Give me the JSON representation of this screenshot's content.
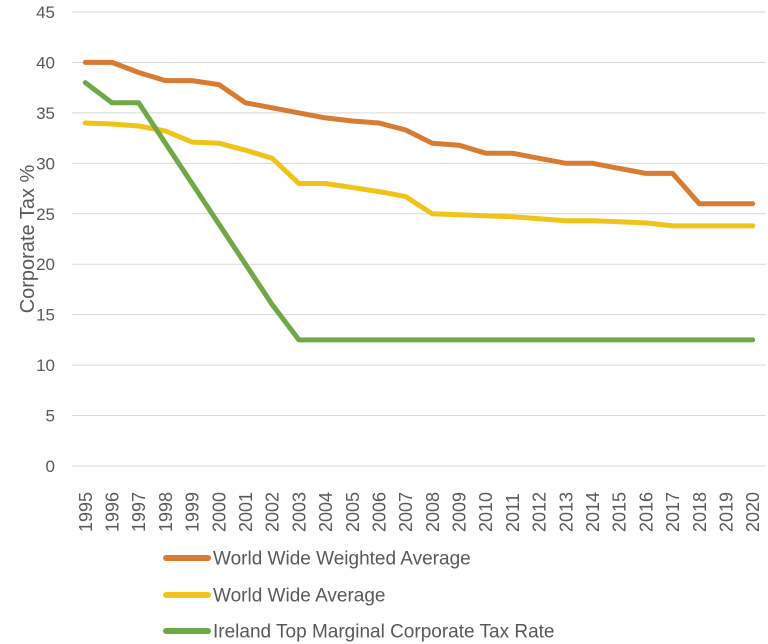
{
  "chart_data": {
    "type": "line",
    "title": "",
    "xlabel": "",
    "ylabel": "Corporate Tax %",
    "ylim": [
      0,
      45
    ],
    "ytick_step": 5,
    "yticks": [
      45,
      40,
      35,
      30,
      25,
      20,
      15,
      10,
      5,
      0
    ],
    "grid": "horizontal",
    "legend_position": "bottom-left",
    "x": [
      "1995",
      "1996",
      "1997",
      "1998",
      "1999",
      "2000",
      "2001",
      "2002",
      "2003",
      "2004",
      "2005",
      "2006",
      "2007",
      "2008",
      "2009",
      "2010",
      "2011",
      "2012",
      "2013",
      "2014",
      "2015",
      "2016",
      "2017",
      "2018",
      "2019",
      "2020"
    ],
    "series": [
      {
        "name": "World Wide Weighted Average",
        "color": "#D87B33",
        "values": [
          40,
          40,
          39,
          38.2,
          38.2,
          37.8,
          36,
          35.5,
          35,
          34.5,
          34.2,
          34,
          33.3,
          32,
          31.8,
          31,
          31,
          30.5,
          30,
          30,
          29.5,
          29,
          29,
          26,
          26,
          26
        ]
      },
      {
        "name": "World Wide Average",
        "color": "#F0C319",
        "values": [
          34,
          33.9,
          33.7,
          33.2,
          32.1,
          32,
          31.3,
          30.5,
          28,
          28,
          27.6,
          27.2,
          26.7,
          25,
          24.9,
          24.8,
          24.7,
          24.5,
          24.3,
          24.3,
          24.2,
          24.1,
          23.8,
          23.8,
          23.8,
          23.8
        ]
      },
      {
        "name": "Ireland Top Marginal Corporate Tax Rate",
        "color": "#70A847",
        "values": [
          38,
          36,
          36,
          32,
          28,
          24,
          20,
          16,
          12.5,
          12.5,
          12.5,
          12.5,
          12.5,
          12.5,
          12.5,
          12.5,
          12.5,
          12.5,
          12.5,
          12.5,
          12.5,
          12.5,
          12.5,
          12.5,
          12.5,
          12.5
        ]
      }
    ]
  },
  "colors": {
    "background": "#FFFFFF",
    "gridline": "#D9D9D9",
    "axis_text": "#595959",
    "legend_text": "#595959"
  }
}
